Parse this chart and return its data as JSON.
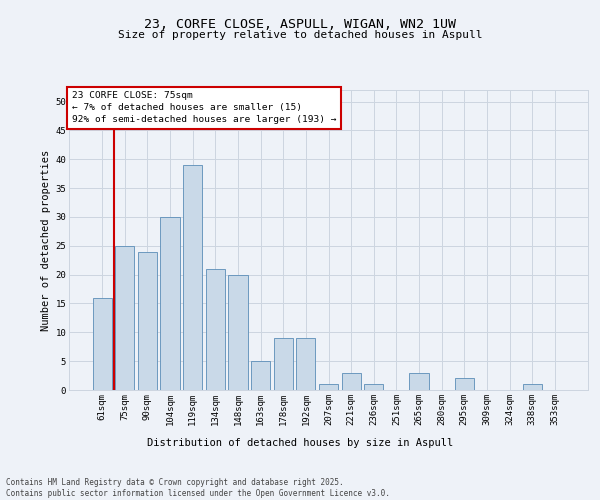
{
  "title_line1": "23, CORFE CLOSE, ASPULL, WIGAN, WN2 1UW",
  "title_line2": "Size of property relative to detached houses in Aspull",
  "xlabel": "Distribution of detached houses by size in Aspull",
  "ylabel": "Number of detached properties",
  "categories": [
    "61sqm",
    "75sqm",
    "90sqm",
    "104sqm",
    "119sqm",
    "134sqm",
    "148sqm",
    "163sqm",
    "178sqm",
    "192sqm",
    "207sqm",
    "221sqm",
    "236sqm",
    "251sqm",
    "265sqm",
    "280sqm",
    "295sqm",
    "309sqm",
    "324sqm",
    "338sqm",
    "353sqm"
  ],
  "values": [
    16,
    25,
    24,
    30,
    39,
    21,
    20,
    5,
    9,
    9,
    1,
    3,
    1,
    0,
    3,
    0,
    2,
    0,
    0,
    1,
    0
  ],
  "highlight_index": 1,
  "bar_color": "#c9d9e8",
  "bar_edge_color": "#5b8db8",
  "highlight_line_color": "#cc0000",
  "annotation_box_color": "#cc0000",
  "annotation_text": "23 CORFE CLOSE: 75sqm\n← 7% of detached houses are smaller (15)\n92% of semi-detached houses are larger (193) →",
  "annotation_fontsize": 6.8,
  "ylim": [
    0,
    52
  ],
  "yticks": [
    0,
    5,
    10,
    15,
    20,
    25,
    30,
    35,
    40,
    45,
    50
  ],
  "grid_color": "#ccd5e0",
  "background_color": "#eef2f8",
  "footer_text": "Contains HM Land Registry data © Crown copyright and database right 2025.\nContains public sector information licensed under the Open Government Licence v3.0.",
  "title_fontsize": 9.5,
  "subtitle_fontsize": 8,
  "axis_label_fontsize": 7.5,
  "tick_fontsize": 6.5,
  "footer_fontsize": 5.5
}
